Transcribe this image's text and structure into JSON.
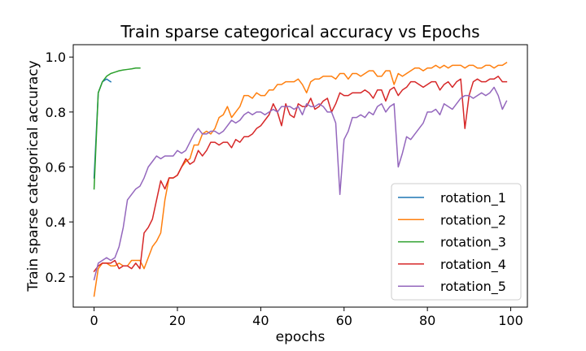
{
  "chart_data": {
    "type": "line",
    "title": "Train sparse categorical accuracy vs Epochs",
    "xlabel": "epochs",
    "ylabel": "Train sparse categorical accuracy",
    "xlim": [
      -5,
      104
    ],
    "ylim": [
      0.09,
      1.045
    ],
    "xticks": [
      0,
      20,
      40,
      60,
      80,
      100
    ],
    "yticks": [
      0.2,
      0.4,
      0.6,
      0.8,
      1.0
    ],
    "xtick_labels": [
      "0",
      "20",
      "40",
      "60",
      "80",
      "100"
    ],
    "ytick_labels": [
      "0.2",
      "0.4",
      "0.6",
      "0.8",
      "1.0"
    ],
    "grid": false,
    "legend_position": "lower-right",
    "series": [
      {
        "name": "rotation_1",
        "color": "#1f77b4",
        "x": [
          0,
          1,
          2,
          3,
          4
        ],
        "y": [
          0.56,
          0.87,
          0.91,
          0.92,
          0.91
        ]
      },
      {
        "name": "rotation_2",
        "color": "#ff7f0e",
        "x": [
          0,
          1,
          2,
          3,
          4,
          5,
          6,
          7,
          8,
          9,
          10,
          11,
          12,
          13,
          14,
          15,
          16,
          17,
          18,
          19,
          20,
          21,
          22,
          23,
          24,
          25,
          26,
          27,
          28,
          29,
          30,
          31,
          32,
          33,
          34,
          35,
          36,
          37,
          38,
          39,
          40,
          41,
          42,
          43,
          44,
          45,
          46,
          47,
          48,
          49,
          50,
          51,
          52,
          53,
          54,
          55,
          56,
          57,
          58,
          59,
          60,
          61,
          62,
          63,
          64,
          65,
          66,
          67,
          68,
          69,
          70,
          71,
          72,
          73,
          74,
          75,
          76,
          77,
          78,
          79,
          80,
          81,
          82,
          83,
          84,
          85,
          86,
          87,
          88,
          89,
          90,
          91,
          92,
          93,
          94,
          95,
          96,
          97,
          98,
          99
        ],
        "y": [
          0.13,
          0.23,
          0.25,
          0.25,
          0.24,
          0.24,
          0.25,
          0.24,
          0.24,
          0.26,
          0.26,
          0.26,
          0.23,
          0.27,
          0.31,
          0.33,
          0.36,
          0.48,
          0.56,
          0.56,
          0.57,
          0.6,
          0.62,
          0.63,
          0.68,
          0.68,
          0.72,
          0.73,
          0.72,
          0.74,
          0.78,
          0.79,
          0.82,
          0.78,
          0.8,
          0.82,
          0.86,
          0.86,
          0.85,
          0.87,
          0.86,
          0.86,
          0.88,
          0.88,
          0.9,
          0.9,
          0.91,
          0.91,
          0.91,
          0.92,
          0.9,
          0.87,
          0.91,
          0.92,
          0.92,
          0.93,
          0.93,
          0.93,
          0.92,
          0.94,
          0.94,
          0.92,
          0.94,
          0.94,
          0.93,
          0.94,
          0.95,
          0.95,
          0.93,
          0.93,
          0.95,
          0.95,
          0.9,
          0.94,
          0.93,
          0.94,
          0.95,
          0.96,
          0.96,
          0.95,
          0.96,
          0.96,
          0.97,
          0.96,
          0.97,
          0.96,
          0.97,
          0.97,
          0.97,
          0.96,
          0.97,
          0.97,
          0.96,
          0.96,
          0.97,
          0.97,
          0.96,
          0.97,
          0.97,
          0.98
        ]
      },
      {
        "name": "rotation_3",
        "color": "#2ca02c",
        "x": [
          0,
          1,
          2,
          3,
          4,
          5,
          6,
          7,
          8,
          9,
          10,
          11
        ],
        "y": [
          0.52,
          0.87,
          0.91,
          0.93,
          0.94,
          0.945,
          0.95,
          0.953,
          0.955,
          0.957,
          0.96,
          0.96
        ]
      },
      {
        "name": "rotation_4",
        "color": "#d62728",
        "x": [
          0,
          1,
          2,
          3,
          4,
          5,
          6,
          7,
          8,
          9,
          10,
          11,
          12,
          13,
          14,
          15,
          16,
          17,
          18,
          19,
          20,
          21,
          22,
          23,
          24,
          25,
          26,
          27,
          28,
          29,
          30,
          31,
          32,
          33,
          34,
          35,
          36,
          37,
          38,
          39,
          40,
          41,
          42,
          43,
          44,
          45,
          46,
          47,
          48,
          49,
          50,
          51,
          52,
          53,
          54,
          55,
          56,
          57,
          58,
          59,
          60,
          61,
          62,
          63,
          64,
          65,
          66,
          67,
          68,
          69,
          70,
          71,
          72,
          73,
          74,
          75,
          76,
          77,
          78,
          79,
          80,
          81,
          82,
          83,
          84,
          85,
          86,
          87,
          88,
          89,
          90,
          91,
          92,
          93,
          94,
          95,
          96,
          97,
          98,
          99
        ],
        "y": [
          0.22,
          0.24,
          0.25,
          0.25,
          0.25,
          0.26,
          0.23,
          0.24,
          0.24,
          0.23,
          0.25,
          0.23,
          0.36,
          0.38,
          0.41,
          0.48,
          0.55,
          0.52,
          0.56,
          0.56,
          0.57,
          0.6,
          0.63,
          0.61,
          0.62,
          0.66,
          0.64,
          0.66,
          0.69,
          0.69,
          0.68,
          0.69,
          0.69,
          0.67,
          0.7,
          0.69,
          0.71,
          0.71,
          0.72,
          0.74,
          0.75,
          0.77,
          0.79,
          0.83,
          0.8,
          0.75,
          0.83,
          0.79,
          0.78,
          0.83,
          0.82,
          0.82,
          0.85,
          0.81,
          0.82,
          0.84,
          0.85,
          0.8,
          0.83,
          0.87,
          0.86,
          0.86,
          0.87,
          0.87,
          0.87,
          0.88,
          0.87,
          0.85,
          0.88,
          0.88,
          0.84,
          0.88,
          0.89,
          0.86,
          0.88,
          0.89,
          0.91,
          0.91,
          0.9,
          0.89,
          0.9,
          0.91,
          0.91,
          0.88,
          0.9,
          0.91,
          0.89,
          0.91,
          0.92,
          0.74,
          0.86,
          0.91,
          0.92,
          0.91,
          0.91,
          0.92,
          0.92,
          0.93,
          0.91,
          0.91
        ]
      },
      {
        "name": "rotation_5",
        "color": "#9467bd",
        "x": [
          0,
          1,
          2,
          3,
          4,
          5,
          6,
          7,
          8,
          9,
          10,
          11,
          12,
          13,
          14,
          15,
          16,
          17,
          18,
          19,
          20,
          21,
          22,
          23,
          24,
          25,
          26,
          27,
          28,
          29,
          30,
          31,
          32,
          33,
          34,
          35,
          36,
          37,
          38,
          39,
          40,
          41,
          42,
          43,
          44,
          45,
          46,
          47,
          48,
          49,
          50,
          51,
          52,
          53,
          54,
          55,
          56,
          57,
          58,
          59,
          60,
          61,
          62,
          63,
          64,
          65,
          66,
          67,
          68,
          69,
          70,
          71,
          72,
          73,
          74,
          75,
          76,
          77,
          78,
          79,
          80,
          81,
          82,
          83,
          84,
          85,
          86,
          87,
          88,
          89,
          90,
          91,
          92,
          93,
          94,
          95,
          96,
          97,
          98,
          99
        ],
        "y": [
          0.19,
          0.25,
          0.26,
          0.27,
          0.26,
          0.27,
          0.31,
          0.38,
          0.48,
          0.5,
          0.52,
          0.53,
          0.56,
          0.6,
          0.62,
          0.64,
          0.63,
          0.64,
          0.64,
          0.64,
          0.66,
          0.65,
          0.66,
          0.69,
          0.72,
          0.74,
          0.72,
          0.72,
          0.73,
          0.73,
          0.72,
          0.73,
          0.75,
          0.77,
          0.76,
          0.77,
          0.79,
          0.8,
          0.79,
          0.8,
          0.8,
          0.79,
          0.8,
          0.81,
          0.8,
          0.82,
          0.82,
          0.82,
          0.81,
          0.82,
          0.79,
          0.83,
          0.82,
          0.82,
          0.83,
          0.82,
          0.8,
          0.8,
          0.76,
          0.5,
          0.7,
          0.73,
          0.78,
          0.78,
          0.79,
          0.78,
          0.8,
          0.79,
          0.82,
          0.83,
          0.8,
          0.82,
          0.83,
          0.6,
          0.65,
          0.71,
          0.7,
          0.72,
          0.74,
          0.76,
          0.8,
          0.8,
          0.81,
          0.79,
          0.83,
          0.82,
          0.81,
          0.83,
          0.85,
          0.86,
          0.86,
          0.85,
          0.86,
          0.87,
          0.86,
          0.87,
          0.89,
          0.86,
          0.81,
          0.84
        ]
      }
    ]
  }
}
